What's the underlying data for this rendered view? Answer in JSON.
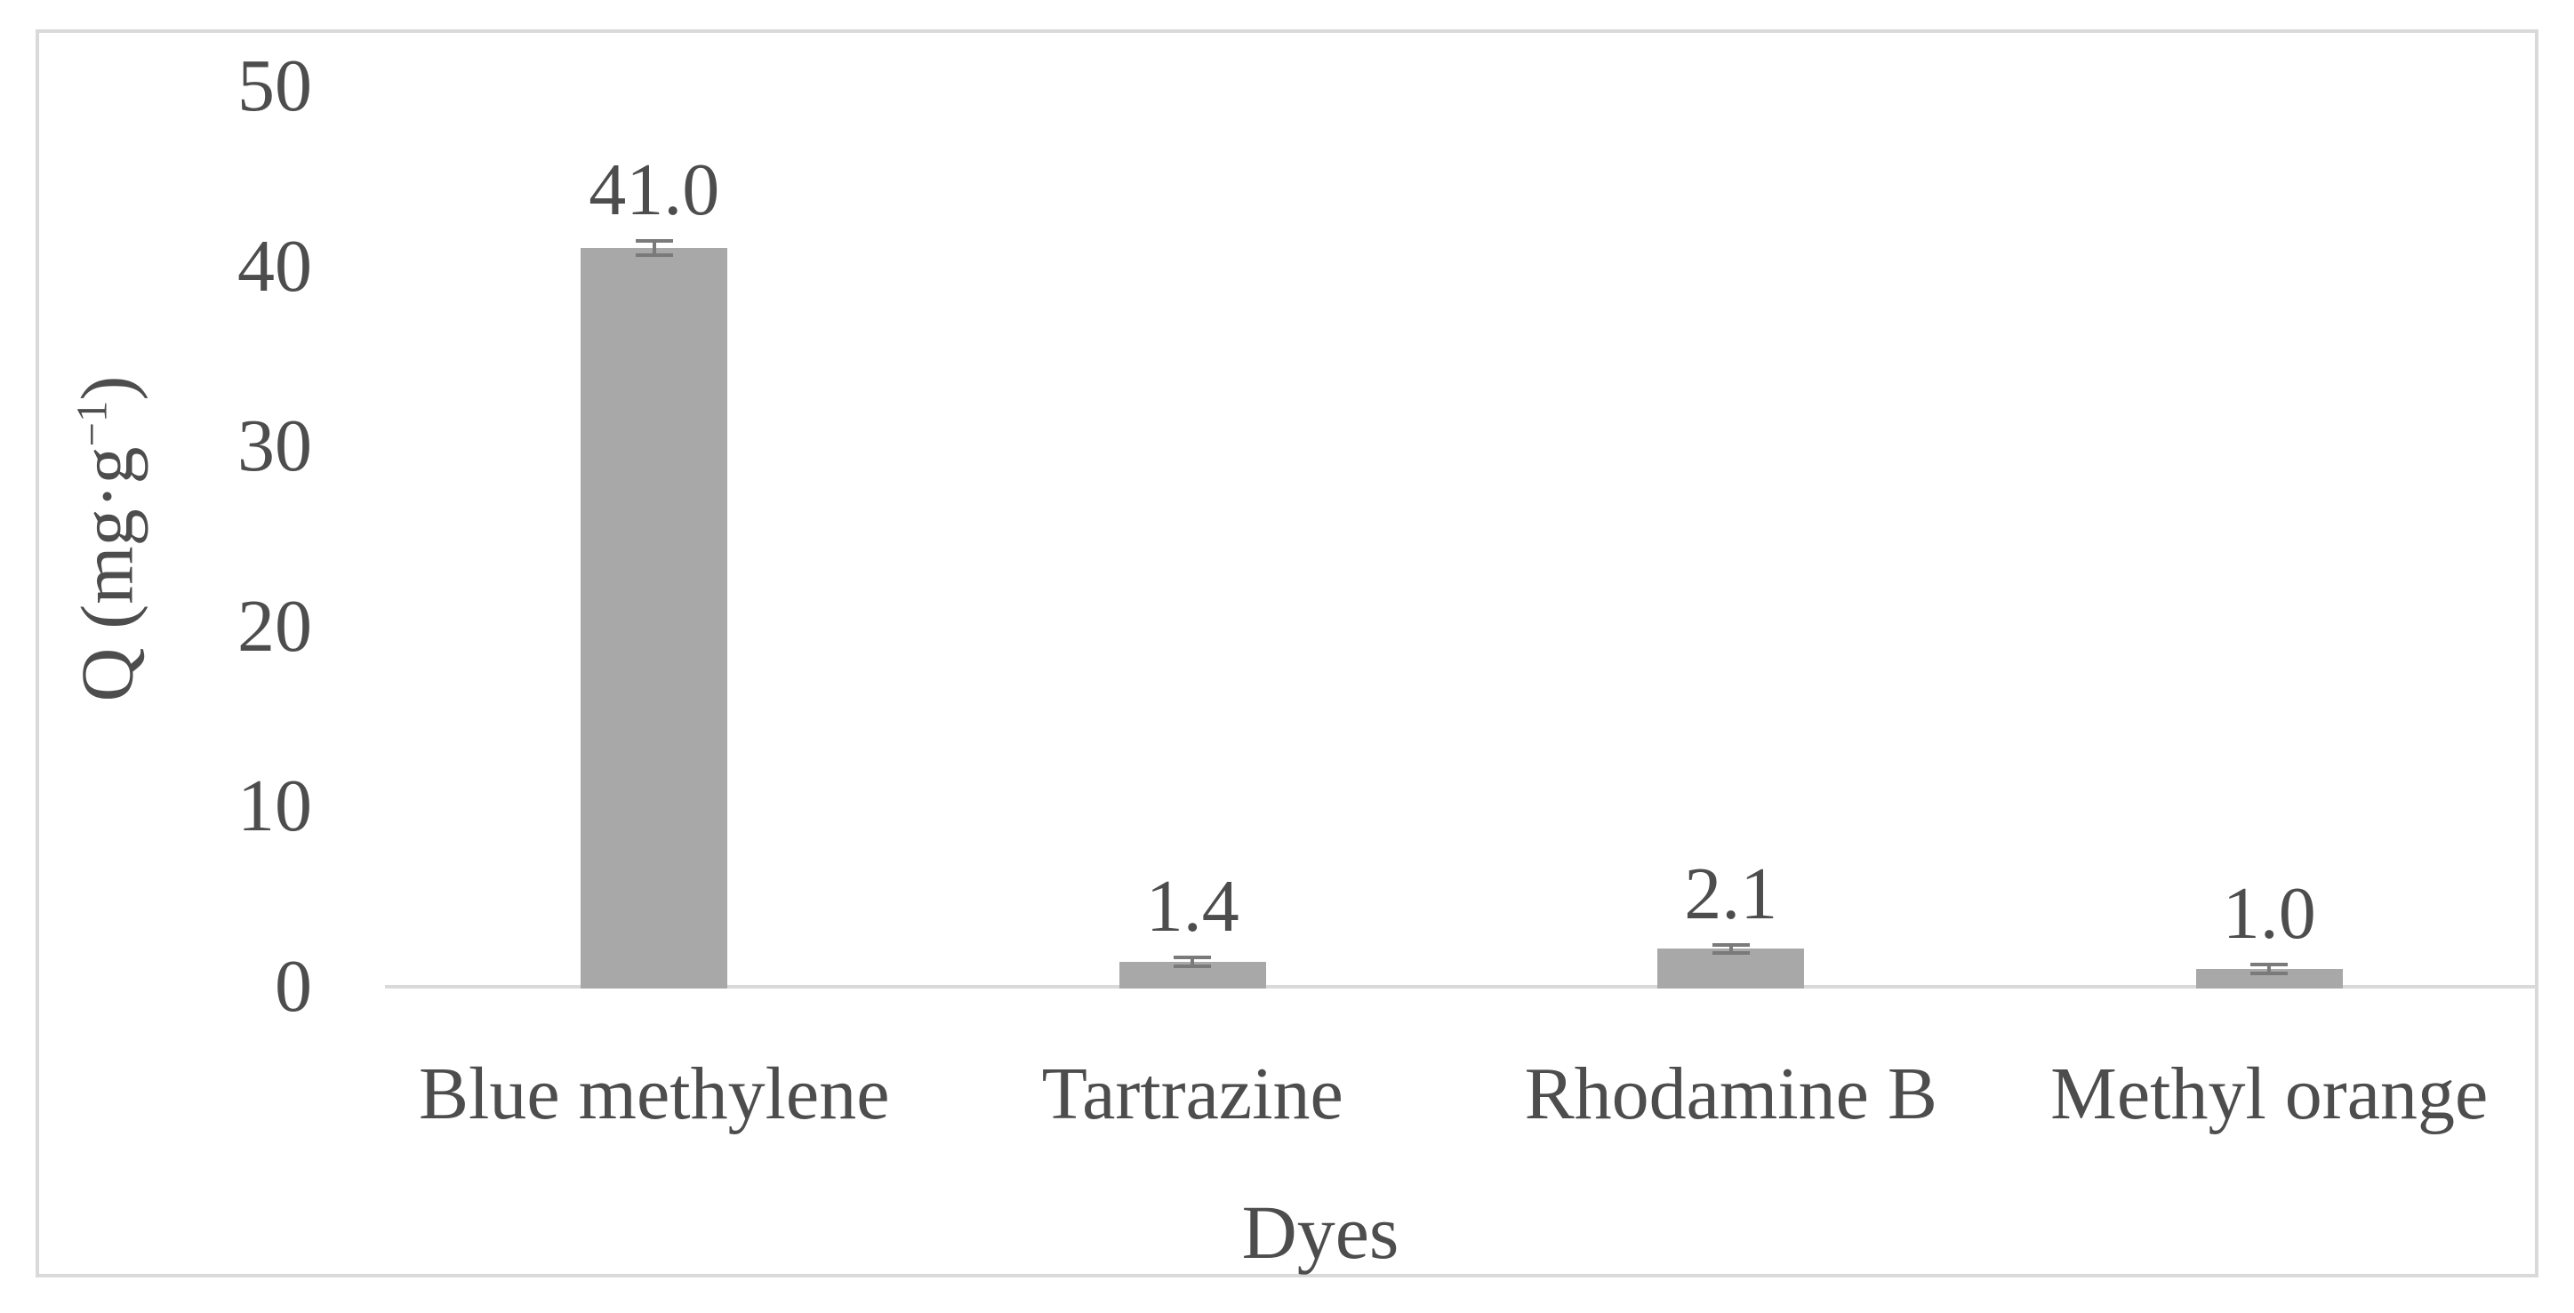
{
  "chart_data": {
    "type": "bar",
    "title": "",
    "categories": [
      "Blue methylene",
      "Tartrazine",
      "Rhodamine B",
      "Methyl orange"
    ],
    "values": [
      41.0,
      1.4,
      2.1,
      1.0
    ],
    "value_labels": [
      "41.0",
      "1.4",
      "2.1",
      "1.0"
    ],
    "errors": [
      0.4,
      0.25,
      0.2,
      0.25
    ],
    "xlabel": "Dyes",
    "ylabel": "Q (mg·g−1)",
    "ylabel_parts": {
      "prefix": "Q (mg·g",
      "sup": "−1",
      "suffix": ")"
    },
    "yticks": [
      "0",
      "10",
      "20",
      "30",
      "40",
      "50"
    ],
    "ytick_values": [
      0,
      10,
      20,
      30,
      40,
      50
    ],
    "ylim": [
      0,
      50
    ],
    "grid": false,
    "legend": null,
    "colors": {
      "bar": "#a8a8a8",
      "error_bar": "#7a7a7a",
      "axis_line": "#d9d9d9",
      "frame_border": "#d9d9d9",
      "text": "#4d4d4d"
    }
  }
}
